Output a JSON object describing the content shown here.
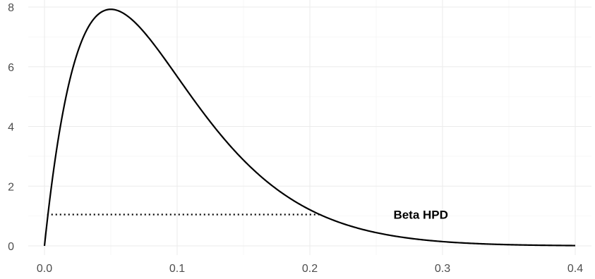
{
  "chart_data": {
    "type": "line",
    "title": "",
    "xlabel": "",
    "ylabel": "",
    "xlim": [
      0,
      0.4
    ],
    "ylim": [
      0,
      8
    ],
    "x_ticks": [
      0.0,
      0.1,
      0.2,
      0.3,
      0.4
    ],
    "x_tick_labels": [
      "0.0",
      "0.1",
      "0.2",
      "0.3",
      "0.4"
    ],
    "y_ticks": [
      0,
      2,
      4,
      6,
      8
    ],
    "y_tick_labels": [
      "0",
      "2",
      "4",
      "6",
      "8"
    ],
    "grid": true,
    "series": [
      {
        "distribution": "beta",
        "alpha": 2,
        "beta": 20,
        "x_range": [
          0,
          0.4
        ],
        "color": "#000000",
        "x": [
          0,
          0.01,
          0.02,
          0.03,
          0.04,
          0.05,
          0.06,
          0.07,
          0.08,
          0.09,
          0.1,
          0.12,
          0.14,
          0.16,
          0.18,
          0.2,
          0.22,
          0.25,
          0.3,
          0.35,
          0.4
        ],
        "y": [
          0,
          3.81,
          6.0,
          7.12,
          7.55,
          7.55,
          7.29,
          6.88,
          6.37,
          5.83,
          5.28,
          4.21,
          3.26,
          2.47,
          1.83,
          1.33,
          0.95,
          0.55,
          0.21,
          0.07,
          0.02
        ]
      }
    ],
    "hpd_interval": {
      "x_start": 0.002,
      "x_end": 0.207,
      "y": 1.05,
      "style": "dotted"
    },
    "annotations": [
      {
        "text": "Beta HPD",
        "x": 0.263,
        "y": 1.05
      }
    ]
  }
}
